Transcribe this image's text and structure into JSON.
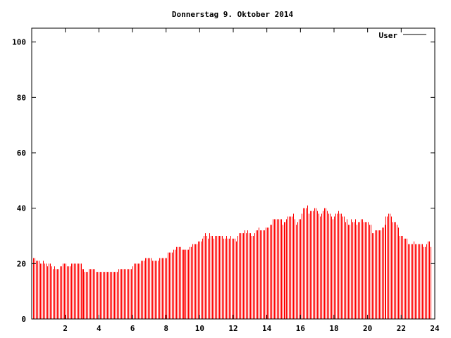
{
  "chart_data": {
    "type": "bar",
    "style": "impulses",
    "title": "Donnerstag 9. Oktober 2014",
    "xlabel": "",
    "ylabel": "",
    "xlim": [
      0,
      24
    ],
    "ylim": [
      0,
      105
    ],
    "x_ticks": [
      "2",
      "4",
      "6",
      "8",
      "10",
      "12",
      "14",
      "16",
      "18",
      "20",
      "22",
      "24"
    ],
    "y_ticks": [
      "0",
      "20",
      "40",
      "60",
      "80",
      "100"
    ],
    "grid": false,
    "legend": {
      "position": "top-right",
      "entries": [
        {
          "label": "User",
          "line_color": "#000000"
        }
      ]
    },
    "series": [
      {
        "name": "User",
        "color": "#ff0000",
        "values": [
          22,
          22,
          21,
          21,
          21,
          20,
          20,
          21,
          20,
          20,
          19,
          20,
          20,
          19,
          18,
          19,
          18,
          18,
          18,
          19,
          19,
          20,
          20,
          20,
          19,
          19,
          19,
          20,
          20,
          20,
          20,
          20,
          20,
          20,
          20,
          18,
          18,
          17,
          17,
          17,
          18,
          18,
          18,
          18,
          18,
          17,
          17,
          17,
          17,
          17,
          17,
          17,
          17,
          17,
          17,
          17,
          17,
          17,
          17,
          17,
          17,
          18,
          18,
          18,
          18,
          18,
          18,
          18,
          18,
          18,
          18,
          19,
          20,
          20,
          20,
          20,
          20,
          21,
          21,
          21,
          22,
          22,
          22,
          22,
          22,
          21,
          21,
          21,
          21,
          21,
          22,
          22,
          22,
          22,
          22,
          22,
          24,
          24,
          24,
          24,
          25,
          25,
          26,
          26,
          26,
          26,
          25,
          25,
          25,
          25,
          25,
          25,
          26,
          26,
          27,
          27,
          27,
          27,
          28,
          28,
          28,
          29,
          30,
          31,
          30,
          29,
          31,
          30,
          30,
          29,
          30,
          30,
          30,
          30,
          30,
          30,
          29,
          29,
          30,
          29,
          29,
          30,
          29,
          29,
          29,
          28,
          30,
          31,
          31,
          31,
          31,
          32,
          31,
          32,
          31,
          31,
          30,
          30,
          31,
          32,
          32,
          33,
          32,
          32,
          32,
          32,
          33,
          33,
          33,
          34,
          34,
          36,
          36,
          36,
          36,
          36,
          36,
          36,
          34,
          35,
          35,
          36,
          37,
          37,
          37,
          37,
          38,
          36,
          34,
          35,
          36,
          36,
          38,
          40,
          40,
          40,
          41,
          38,
          39,
          39,
          39,
          40,
          40,
          39,
          38,
          37,
          38,
          39,
          40,
          40,
          39,
          38,
          38,
          37,
          36,
          37,
          38,
          38,
          39,
          38,
          38,
          37,
          37,
          35,
          36,
          34,
          34,
          36,
          35,
          35,
          36,
          34,
          35,
          35,
          36,
          36,
          35,
          35,
          35,
          35,
          34,
          34,
          31,
          31,
          32,
          32,
          32,
          32,
          32,
          33,
          33,
          34,
          37,
          37,
          38,
          38,
          37,
          35,
          35,
          35,
          34,
          33,
          30,
          30,
          30,
          29,
          29,
          29,
          27,
          27,
          27,
          27,
          28,
          27,
          27,
          27,
          27,
          27,
          27,
          26,
          26,
          27,
          28,
          28,
          26
        ]
      }
    ]
  }
}
